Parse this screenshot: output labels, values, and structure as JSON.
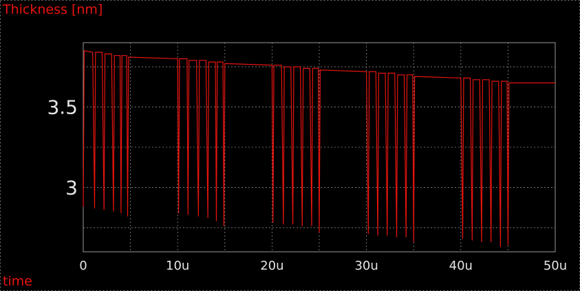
{
  "chart_data": {
    "type": "line",
    "ylabel": "Thickness [nm]",
    "xlabel": "time",
    "xlim": [
      0,
      50
    ],
    "ylim": [
      2.6,
      3.9
    ],
    "xticks": [
      {
        "value": 0,
        "label": "0"
      },
      {
        "value": 10,
        "label": "10u"
      },
      {
        "value": 20,
        "label": "20u"
      },
      {
        "value": 30,
        "label": "30u"
      },
      {
        "value": 40,
        "label": "40u"
      },
      {
        "value": 50,
        "label": "50u"
      }
    ],
    "yticks": [
      {
        "value": 3.5,
        "label": "3.5"
      },
      {
        "value": 3.0,
        "label": "3"
      }
    ],
    "grid": true,
    "colors": {
      "line": "#e8140f",
      "background": "#000000",
      "grid": "#8c8c8c",
      "tick_text": "#e6e6e6"
    },
    "series": [
      {
        "points": [
          [
            0.0,
            2.88
          ],
          [
            0.1,
            3.85
          ],
          [
            1.0,
            3.84
          ],
          [
            1.2,
            2.87
          ],
          [
            1.3,
            3.84
          ],
          [
            2.0,
            3.84
          ],
          [
            2.2,
            2.86
          ],
          [
            2.3,
            3.83
          ],
          [
            3.0,
            3.83
          ],
          [
            3.2,
            2.85
          ],
          [
            3.3,
            3.82
          ],
          [
            3.9,
            3.82
          ],
          [
            4.0,
            2.84
          ],
          [
            4.1,
            3.82
          ],
          [
            4.6,
            3.82
          ],
          [
            4.7,
            2.82
          ],
          [
            4.8,
            3.81
          ],
          [
            10.0,
            3.8
          ],
          [
            10.1,
            2.84
          ],
          [
            10.2,
            3.8
          ],
          [
            11.0,
            3.8
          ],
          [
            11.1,
            2.83
          ],
          [
            11.2,
            3.79
          ],
          [
            12.0,
            3.79
          ],
          [
            12.2,
            2.82
          ],
          [
            12.3,
            3.79
          ],
          [
            13.0,
            3.79
          ],
          [
            13.2,
            2.81
          ],
          [
            13.3,
            3.78
          ],
          [
            14.0,
            3.78
          ],
          [
            14.1,
            2.79
          ],
          [
            14.2,
            3.78
          ],
          [
            14.8,
            3.78
          ],
          [
            14.9,
            2.76
          ],
          [
            15.0,
            3.77
          ],
          [
            20.0,
            3.76
          ],
          [
            20.1,
            2.78
          ],
          [
            20.2,
            3.76
          ],
          [
            21.0,
            3.76
          ],
          [
            21.2,
            2.77
          ],
          [
            21.3,
            3.75
          ],
          [
            22.0,
            3.75
          ],
          [
            22.2,
            2.77
          ],
          [
            22.3,
            3.75
          ],
          [
            23.0,
            3.75
          ],
          [
            23.2,
            2.76
          ],
          [
            23.3,
            3.74
          ],
          [
            24.0,
            3.74
          ],
          [
            24.2,
            2.76
          ],
          [
            24.3,
            3.74
          ],
          [
            24.9,
            3.74
          ],
          [
            25.0,
            2.72
          ],
          [
            25.1,
            3.73
          ],
          [
            30.0,
            3.72
          ],
          [
            30.2,
            2.71
          ],
          [
            30.3,
            3.72
          ],
          [
            31.0,
            3.72
          ],
          [
            31.2,
            2.7
          ],
          [
            31.3,
            3.71
          ],
          [
            32.0,
            3.71
          ],
          [
            32.2,
            2.7
          ],
          [
            32.3,
            3.71
          ],
          [
            33.0,
            3.71
          ],
          [
            33.2,
            2.69
          ],
          [
            33.3,
            3.7
          ],
          [
            34.0,
            3.7
          ],
          [
            34.2,
            2.69
          ],
          [
            34.3,
            3.7
          ],
          [
            34.9,
            3.7
          ],
          [
            35.0,
            2.66
          ],
          [
            35.1,
            3.69
          ],
          [
            40.0,
            3.68
          ],
          [
            40.2,
            2.68
          ],
          [
            40.3,
            3.68
          ],
          [
            41.0,
            3.68
          ],
          [
            41.2,
            2.67
          ],
          [
            41.3,
            3.67
          ],
          [
            42.0,
            3.67
          ],
          [
            42.2,
            2.66
          ],
          [
            42.3,
            3.67
          ],
          [
            43.0,
            3.67
          ],
          [
            43.2,
            2.66
          ],
          [
            43.3,
            3.66
          ],
          [
            44.0,
            3.66
          ],
          [
            44.2,
            2.63
          ],
          [
            44.3,
            3.66
          ],
          [
            44.9,
            3.66
          ],
          [
            45.0,
            2.64
          ],
          [
            45.1,
            3.65
          ],
          [
            50.0,
            3.65
          ]
        ]
      }
    ]
  }
}
